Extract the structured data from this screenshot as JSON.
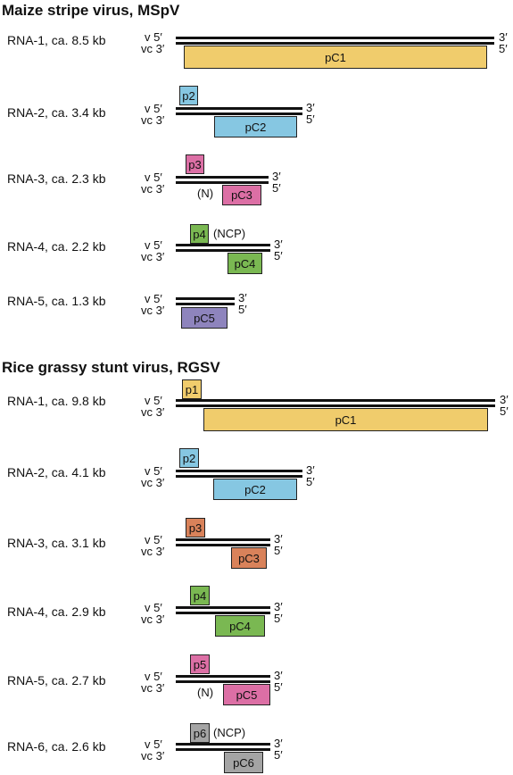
{
  "colors": {
    "yellow": "#f0cc6c",
    "blue": "#86c7e2",
    "pink": "#dc6fa5",
    "green": "#7ab852",
    "purple": "#8e84bd",
    "orange": "#d9825a",
    "gray": "#a4a4a4"
  },
  "strand_labels": {
    "v": "v 5′",
    "vc": "vc 3′",
    "end3": "3′",
    "end5": "5′"
  },
  "mspv": {
    "title": "Maize stripe virus, MSpV",
    "rna1": {
      "label": "RNA-1, ca. 8.5 kb",
      "pC": "pC1"
    },
    "rna2": {
      "label": "RNA-2, ca. 3.4 kb",
      "p": "p2",
      "pC": "pC2"
    },
    "rna3": {
      "label": "RNA-3, ca. 2.3 kb",
      "p": "p3",
      "note": "(N)",
      "pC": "pC3"
    },
    "rna4": {
      "label": "RNA-4, ca. 2.2 kb",
      "p": "p4",
      "note": "(NCP)",
      "pC": "pC4"
    },
    "rna5": {
      "label": "RNA-5, ca. 1.3 kb",
      "pC": "pC5"
    }
  },
  "rgsv": {
    "title": "Rice grassy stunt virus, RGSV",
    "rna1": {
      "label": "RNA-1, ca. 9.8 kb",
      "p": "p1",
      "pC": "pC1"
    },
    "rna2": {
      "label": "RNA-2, ca. 4.1 kb",
      "p": "p2",
      "pC": "pC2"
    },
    "rna3": {
      "label": "RNA-3, ca. 3.1 kb",
      "p": "p3",
      "pC": "pC3"
    },
    "rna4": {
      "label": "RNA-4, ca. 2.9 kb",
      "p": "p4",
      "pC": "pC4"
    },
    "rna5": {
      "label": "RNA-5, ca. 2.7 kb",
      "p": "p5",
      "note": "(N)",
      "pC": "pC5"
    },
    "rna6": {
      "label": "RNA-6, ca. 2.6 kb",
      "p": "p6",
      "note": "(NCP)",
      "pC": "pC6"
    }
  }
}
